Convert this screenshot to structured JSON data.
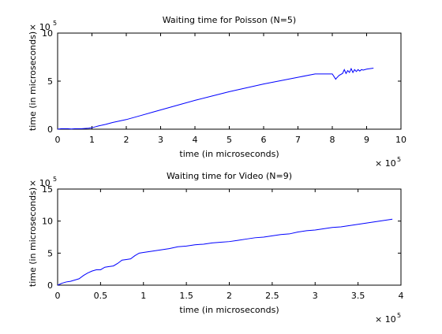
{
  "chart_data": [
    {
      "type": "line",
      "title": "Waiting time for Poisson (N=5)",
      "xlabel": "time (in microseconds)",
      "ylabel": "time (in microseconds)",
      "x_exponent_label": "× 10",
      "x_exponent": "5",
      "y_exponent_label": "× 10",
      "y_exponent": "5",
      "xlim": [
        0,
        10
      ],
      "ylim": [
        0,
        10
      ],
      "xticks": [
        "0",
        "1",
        "2",
        "3",
        "4",
        "5",
        "6",
        "7",
        "8",
        "9",
        "10"
      ],
      "yticks": [
        "0",
        "5",
        "10"
      ],
      "grid": false,
      "line_color": "#0000ff",
      "series": [
        {
          "x": [
            0.0,
            0.1,
            0.2,
            0.3,
            0.4,
            0.5,
            0.7,
            0.9,
            1.0,
            1.1,
            1.2,
            1.4,
            1.6,
            1.8,
            2.0,
            2.4,
            2.8,
            3.2,
            3.6,
            4.0,
            4.5,
            5.0,
            5.5,
            6.0,
            6.5,
            7.0,
            7.5,
            8.0,
            8.1,
            8.12,
            8.2,
            8.3,
            8.35,
            8.4,
            8.45,
            8.5,
            8.55,
            8.6,
            8.65,
            8.7,
            8.75,
            8.8,
            8.85,
            8.9,
            9.0,
            9.2
          ],
          "y": [
            0.0,
            0.05,
            0.05,
            0.05,
            0.02,
            0.05,
            0.05,
            0.1,
            0.15,
            0.25,
            0.35,
            0.5,
            0.7,
            0.85,
            1.0,
            1.4,
            1.8,
            2.2,
            2.6,
            3.0,
            3.45,
            3.9,
            4.3,
            4.7,
            5.05,
            5.4,
            5.75,
            5.75,
            5.2,
            5.3,
            5.6,
            5.8,
            6.2,
            5.8,
            6.1,
            5.9,
            6.3,
            5.9,
            6.2,
            6.0,
            6.2,
            6.05,
            6.2,
            6.15,
            6.25,
            6.35
          ]
        }
      ]
    },
    {
      "type": "line",
      "title": "Waiting time for Video (N=9)",
      "xlabel": "time (in microseconds)",
      "ylabel": "time (in microseconds)",
      "x_exponent_label": "× 10",
      "x_exponent": "5",
      "y_exponent_label": "× 10",
      "y_exponent": "5",
      "xlim": [
        0,
        4
      ],
      "ylim": [
        0,
        15
      ],
      "xticks": [
        "0",
        "0.5",
        "1",
        "1.5",
        "2",
        "2.5",
        "3",
        "3.5",
        "4"
      ],
      "yticks": [
        "0",
        "5",
        "10",
        "15"
      ],
      "grid": false,
      "line_color": "#0000ff",
      "series": [
        {
          "x": [
            0.0,
            0.05,
            0.1,
            0.15,
            0.2,
            0.25,
            0.3,
            0.35,
            0.4,
            0.45,
            0.5,
            0.55,
            0.6,
            0.65,
            0.7,
            0.75,
            0.8,
            0.85,
            0.9,
            0.95,
            1.0,
            1.1,
            1.2,
            1.3,
            1.4,
            1.5,
            1.6,
            1.7,
            1.8,
            1.9,
            2.0,
            2.1,
            2.2,
            2.3,
            2.4,
            2.5,
            2.6,
            2.7,
            2.8,
            2.9,
            3.0,
            3.1,
            3.2,
            3.3,
            3.4,
            3.5,
            3.6,
            3.7,
            3.8,
            3.9
          ],
          "y": [
            0.0,
            0.3,
            0.5,
            0.6,
            0.8,
            1.0,
            1.5,
            1.9,
            2.2,
            2.4,
            2.4,
            2.8,
            2.9,
            3.0,
            3.4,
            3.9,
            4.0,
            4.1,
            4.6,
            5.0,
            5.1,
            5.3,
            5.5,
            5.7,
            6.0,
            6.1,
            6.3,
            6.4,
            6.6,
            6.7,
            6.8,
            7.0,
            7.2,
            7.4,
            7.5,
            7.7,
            7.9,
            8.0,
            8.3,
            8.5,
            8.6,
            8.8,
            9.0,
            9.1,
            9.3,
            9.5,
            9.7,
            9.9,
            10.1,
            10.3
          ]
        }
      ]
    }
  ]
}
